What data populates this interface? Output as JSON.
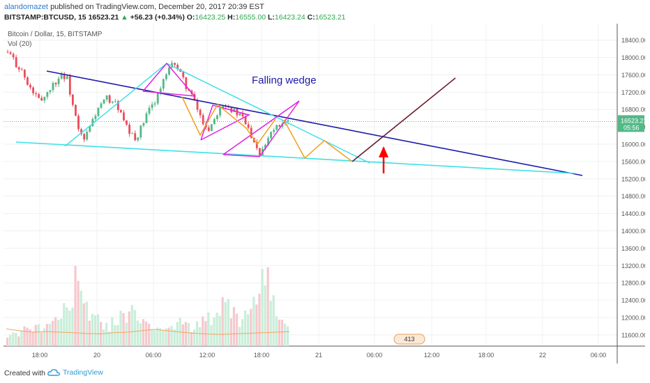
{
  "header": {
    "author": "alandomazet",
    "published_text": "published on TradingView.com, December 20, 2017 20:39 EST",
    "symbol": "BITSTAMP:BTCUSD, 15",
    "last": "16523.21",
    "change": "+56.23 (+0.34%)",
    "o_label": "O:",
    "o": "16423.25",
    "h_label": "H:",
    "h": "16555.00",
    "l_label": "L:",
    "l": "16423.24",
    "c_label": "C:",
    "c": "16523.21"
  },
  "legend": {
    "title": "Bitcoin / Dollar, 15, BITSTAMP",
    "vol": "Vol (20)"
  },
  "annotation": {
    "text": "Falling wedge"
  },
  "price_badge": {
    "price": "16523.21",
    "timer": "05:56"
  },
  "volume_badge": "413",
  "colors": {
    "up": "#53b987",
    "down": "#eb4d5c",
    "cyan": "#40e0e8",
    "navy": "#1a1aa8",
    "magenta": "#e020e0",
    "orange": "#f0a020",
    "maroon": "#6b1c2e",
    "arrow": "#ff0000",
    "volma": "#f5a35c",
    "accent": "#2e9ad6"
  },
  "chart_data": {
    "type": "candlestick",
    "x_ticks": [
      "18:00",
      "20",
      "06:00",
      "12:00",
      "18:00",
      "21",
      "06:00",
      "12:00",
      "18:00",
      "22",
      "06:00"
    ],
    "y_ticks": [
      "18400.00",
      "18000.00",
      "17600.00",
      "17200.00",
      "16800.00",
      "16400.00",
      "16000.00",
      "15600.00",
      "15200.00",
      "14800.00",
      "14400.00",
      "14000.00",
      "13600.00",
      "13200.00",
      "12800.00",
      "12400.00",
      "12000.00",
      "11600.00"
    ],
    "ylim": [
      11340,
      18780
    ],
    "price_series": [
      18130,
      18050,
      17850,
      17700,
      17350,
      17200,
      17000,
      17100,
      17300,
      17450,
      17620,
      17500,
      16900,
      16300,
      16080,
      16400,
      16700,
      16900,
      17050,
      17000,
      16850,
      16500,
      16250,
      16100,
      16350,
      16650,
      16900,
      17150,
      17450,
      17700,
      17900,
      17600,
      17350,
      17100,
      16800,
      16500,
      16350,
      16600,
      16900,
      16950,
      16800,
      16700,
      16600,
      16350,
      16100,
      15800,
      16050,
      16300,
      16450,
      16520,
      16523
    ],
    "volume_series": [
      140,
      220,
      180,
      300,
      260,
      410,
      350,
      500,
      380,
      640,
      720,
      600,
      1250,
      900,
      700,
      560,
      480,
      420,
      380,
      460,
      520,
      610,
      730,
      680,
      560,
      430,
      380,
      310,
      290,
      350,
      400,
      440,
      360,
      300,
      380,
      460,
      520,
      600,
      700,
      820,
      640,
      540,
      500,
      620,
      900,
      1200,
      1500,
      980,
      620,
      420,
      300
    ],
    "volume_ma": [
      0.62,
      0.55,
      0.5,
      0.52,
      0.5,
      0.48,
      0.45,
      0.44,
      0.48,
      0.5,
      0.55,
      0.6,
      0.55,
      0.5,
      0.46,
      0.43,
      0.42,
      0.44,
      0.46,
      0.48,
      0.5,
      0.52
    ],
    "last_price": 16523.21,
    "annotations": [
      "Falling wedge"
    ]
  }
}
